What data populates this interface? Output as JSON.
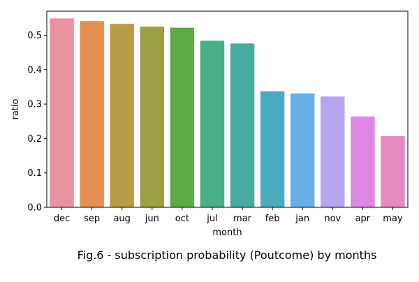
{
  "chart_data": {
    "type": "bar",
    "caption": "Fig.6 - subscription probability (Poutcome) by months",
    "xlabel": "month",
    "ylabel": "ratio",
    "ylim": [
      0,
      0.57
    ],
    "yticks": [
      0.0,
      0.1,
      0.2,
      0.3,
      0.4,
      0.5
    ],
    "ytick_labels": [
      "0.0",
      "0.1",
      "0.2",
      "0.3",
      "0.4",
      "0.5"
    ],
    "categories": [
      "dec",
      "sep",
      "aug",
      "jun",
      "oct",
      "jul",
      "mar",
      "feb",
      "jan",
      "nov",
      "apr",
      "may"
    ],
    "values": [
      0.549,
      0.541,
      0.533,
      0.525,
      0.522,
      0.484,
      0.476,
      0.337,
      0.331,
      0.322,
      0.264,
      0.207
    ],
    "colors": [
      "#e8939f",
      "#e58f52",
      "#b89b45",
      "#9aa244",
      "#5dab45",
      "#4aae86",
      "#49aaa0",
      "#4aaabf",
      "#6aaee5",
      "#b7a6ef",
      "#df88e5",
      "#e68bc1"
    ],
    "grid": false,
    "legend": "none"
  }
}
